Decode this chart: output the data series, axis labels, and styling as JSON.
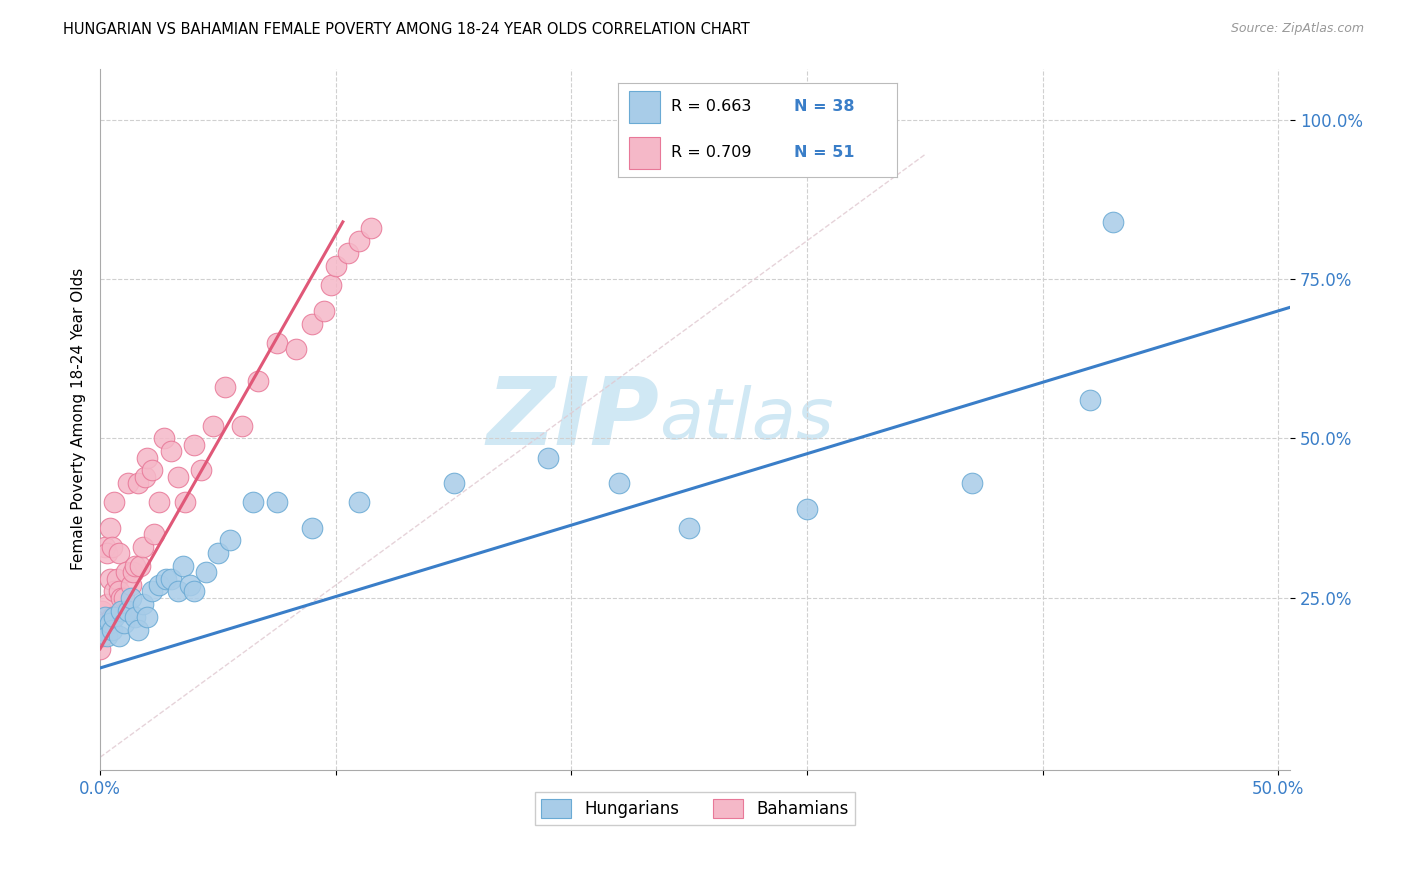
{
  "title": "HUNGARIAN VS BAHAMIAN FEMALE POVERTY AMONG 18-24 YEAR OLDS CORRELATION CHART",
  "source": "Source: ZipAtlas.com",
  "ylabel": "Female Poverty Among 18-24 Year Olds",
  "xlim": [
    0.0,
    0.505
  ],
  "ylim": [
    -0.02,
    1.08
  ],
  "ytick_positions": [
    0.25,
    0.5,
    0.75,
    1.0
  ],
  "ytick_labels": [
    "25.0%",
    "50.0%",
    "75.0%",
    "100.0%"
  ],
  "xtick_positions": [
    0.0,
    0.1,
    0.2,
    0.3,
    0.4,
    0.5
  ],
  "xtick_labels": [
    "0.0%",
    "",
    "",
    "",
    "",
    "50.0%"
  ],
  "blue_scatter_color": "#a8cce8",
  "blue_scatter_edge": "#6aaad4",
  "pink_scatter_color": "#f5b8c8",
  "pink_scatter_edge": "#e87898",
  "blue_line_color": "#3a7ec8",
  "pink_line_color": "#e05878",
  "dashed_line_color": "#e0c8d0",
  "grid_color": "#d0d0d0",
  "legend_color_R": "#000000",
  "legend_color_N": "#3a7ec8",
  "watermark_color": "#d0e8f4",
  "hun_x": [
    0.001,
    0.002,
    0.003,
    0.004,
    0.005,
    0.006,
    0.008,
    0.009,
    0.01,
    0.012,
    0.013,
    0.015,
    0.016,
    0.018,
    0.02,
    0.022,
    0.025,
    0.028,
    0.03,
    0.033,
    0.035,
    0.038,
    0.04,
    0.045,
    0.05,
    0.055,
    0.065,
    0.075,
    0.09,
    0.11,
    0.15,
    0.19,
    0.22,
    0.25,
    0.3,
    0.37,
    0.42,
    0.43
  ],
  "hun_y": [
    0.2,
    0.22,
    0.19,
    0.21,
    0.2,
    0.22,
    0.19,
    0.23,
    0.21,
    0.23,
    0.25,
    0.22,
    0.2,
    0.24,
    0.22,
    0.26,
    0.27,
    0.28,
    0.28,
    0.26,
    0.3,
    0.27,
    0.26,
    0.29,
    0.32,
    0.34,
    0.4,
    0.4,
    0.36,
    0.4,
    0.43,
    0.47,
    0.43,
    0.36,
    0.39,
    0.43,
    0.56,
    0.84
  ],
  "bah_x": [
    0.0,
    0.001,
    0.001,
    0.002,
    0.002,
    0.003,
    0.003,
    0.004,
    0.004,
    0.005,
    0.005,
    0.006,
    0.006,
    0.007,
    0.008,
    0.008,
    0.009,
    0.01,
    0.011,
    0.011,
    0.012,
    0.013,
    0.014,
    0.015,
    0.016,
    0.017,
    0.018,
    0.019,
    0.02,
    0.022,
    0.023,
    0.025,
    0.027,
    0.03,
    0.033,
    0.036,
    0.04,
    0.043,
    0.048,
    0.053,
    0.06,
    0.067,
    0.075,
    0.083,
    0.09,
    0.095,
    0.098,
    0.1,
    0.105,
    0.11,
    0.115
  ],
  "bah_y": [
    0.17,
    0.19,
    0.23,
    0.21,
    0.33,
    0.24,
    0.32,
    0.28,
    0.36,
    0.22,
    0.33,
    0.4,
    0.26,
    0.28,
    0.26,
    0.32,
    0.25,
    0.25,
    0.29,
    0.23,
    0.43,
    0.27,
    0.29,
    0.3,
    0.43,
    0.3,
    0.33,
    0.44,
    0.47,
    0.45,
    0.35,
    0.4,
    0.5,
    0.48,
    0.44,
    0.4,
    0.49,
    0.45,
    0.52,
    0.58,
    0.52,
    0.59,
    0.65,
    0.64,
    0.68,
    0.7,
    0.74,
    0.77,
    0.79,
    0.81,
    0.83
  ]
}
